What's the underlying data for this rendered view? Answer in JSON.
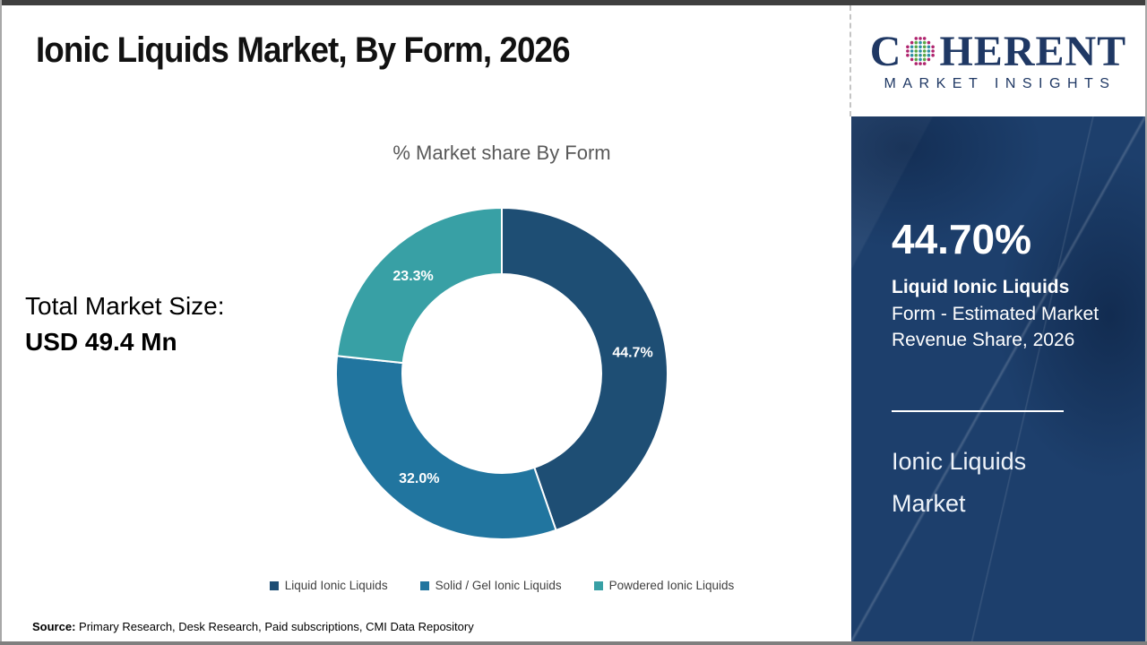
{
  "header": {
    "title": "Ionic Liquids Market, By Form, 2026"
  },
  "logo": {
    "brand_prefix": "C",
    "brand_suffix": "HERENT",
    "tagline": "MARKET INSIGHTS",
    "globe_colors": {
      "outer": "#b0246e",
      "teal": "#2e8fa5",
      "green": "#5aa646"
    }
  },
  "left_panel": {
    "total_label": "Total Market Size:",
    "total_value": "USD 49.4 Mn"
  },
  "chart_data": {
    "type": "pie",
    "subtype": "donut",
    "title": "% Market share By Form",
    "categories": [
      "Liquid Ionic Liquids",
      "Solid / Gel Ionic Liquids",
      "Powdered Ionic Liquids"
    ],
    "values": [
      44.7,
      32.0,
      23.3
    ],
    "value_labels": [
      "44.7%",
      "32.0%",
      "23.3%"
    ],
    "colors": [
      "#1e4e74",
      "#21759f",
      "#38a0a5"
    ],
    "start_angle_deg": 0,
    "direction": "clockwise",
    "inner_radius_ratio": 0.6,
    "legend_position": "bottom"
  },
  "sidebar": {
    "highlight_value": "44.70%",
    "highlight_desc_bold": "Liquid Ionic Liquids",
    "highlight_desc_rest": " Form - Estimated Market Revenue Share, 2026",
    "market_name_line1": "Ionic Liquids",
    "market_name_line2": "Market",
    "panel_color": "#1d3f6c"
  },
  "footer": {
    "source_label": "Source:",
    "source_text": " Primary Research, Desk Research, Paid subscriptions, CMI Data Repository"
  }
}
